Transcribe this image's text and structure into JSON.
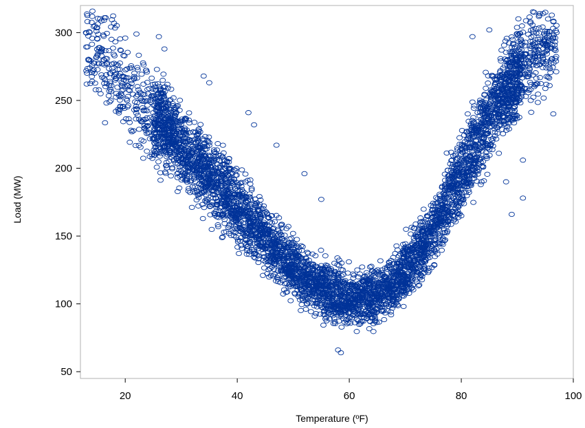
{
  "colors": {
    "marker": "#003399",
    "frame": "#b0b0b0",
    "background": "#ffffff"
  },
  "chart_data": {
    "type": "scatter",
    "title": "",
    "xlabel": "Temperature (ºF)",
    "ylabel": "Load (MW)",
    "xlim": [
      12,
      100
    ],
    "ylim": [
      45,
      320
    ],
    "xticks": [
      20,
      40,
      60,
      80,
      100
    ],
    "yticks": [
      50,
      100,
      150,
      200,
      250,
      300
    ],
    "grid": false,
    "legend": "none",
    "marker": "open-circle",
    "series": [
      {
        "trend": [
          {
            "x": 13,
            "y": 292
          },
          {
            "x": 15,
            "y": 284
          },
          {
            "x": 18,
            "y": 272
          },
          {
            "x": 20,
            "y": 262
          },
          {
            "x": 22,
            "y": 251
          },
          {
            "x": 25,
            "y": 239
          },
          {
            "x": 28,
            "y": 226
          },
          {
            "x": 31,
            "y": 212
          },
          {
            "x": 34,
            "y": 199
          },
          {
            "x": 37,
            "y": 186
          },
          {
            "x": 40,
            "y": 172
          },
          {
            "x": 43,
            "y": 158
          },
          {
            "x": 46,
            "y": 144
          },
          {
            "x": 49,
            "y": 132
          },
          {
            "x": 52,
            "y": 120
          },
          {
            "x": 55,
            "y": 112
          },
          {
            "x": 58,
            "y": 106
          },
          {
            "x": 61,
            "y": 104
          },
          {
            "x": 64,
            "y": 105
          },
          {
            "x": 67,
            "y": 112
          },
          {
            "x": 70,
            "y": 124
          },
          {
            "x": 73,
            "y": 141
          },
          {
            "x": 76,
            "y": 163
          },
          {
            "x": 79,
            "y": 187
          },
          {
            "x": 82,
            "y": 212
          },
          {
            "x": 85,
            "y": 237
          },
          {
            "x": 88,
            "y": 258
          },
          {
            "x": 91,
            "y": 276
          },
          {
            "x": 94,
            "y": 289
          },
          {
            "x": 97,
            "y": 297
          }
        ],
        "outliers": [
          {
            "x": 16.5,
            "y": 311
          },
          {
            "x": 18,
            "y": 307
          },
          {
            "x": 13,
            "y": 300
          },
          {
            "x": 22,
            "y": 299
          },
          {
            "x": 26,
            "y": 297
          },
          {
            "x": 27,
            "y": 288
          },
          {
            "x": 34,
            "y": 268
          },
          {
            "x": 35,
            "y": 263
          },
          {
            "x": 42,
            "y": 241
          },
          {
            "x": 43,
            "y": 232
          },
          {
            "x": 47,
            "y": 217
          },
          {
            "x": 52,
            "y": 196
          },
          {
            "x": 55,
            "y": 177
          },
          {
            "x": 58,
            "y": 66
          },
          {
            "x": 58.5,
            "y": 64
          },
          {
            "x": 82,
            "y": 297
          },
          {
            "x": 85,
            "y": 302
          },
          {
            "x": 93,
            "y": 315
          },
          {
            "x": 94,
            "y": 314
          },
          {
            "x": 95,
            "y": 315
          },
          {
            "x": 97,
            "y": 300
          },
          {
            "x": 91,
            "y": 206
          },
          {
            "x": 89,
            "y": 166
          },
          {
            "x": 91,
            "y": 178
          },
          {
            "x": 88,
            "y": 190
          },
          {
            "x": 20,
            "y": 296
          }
        ]
      }
    ]
  }
}
